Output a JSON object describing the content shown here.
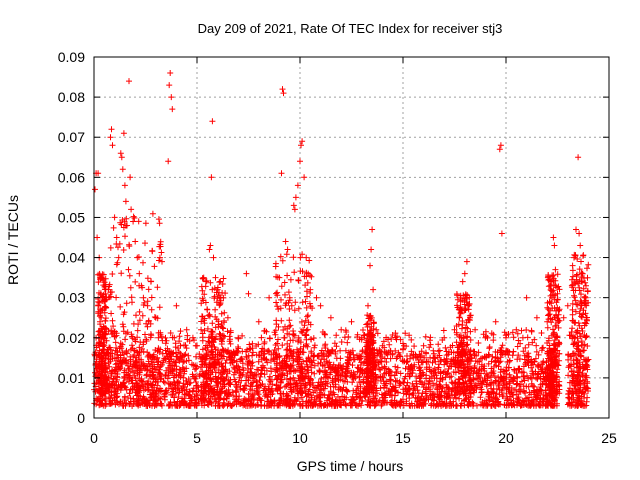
{
  "chart_data": {
    "type": "scatter",
    "title": "Day 209 of 2021, Rate Of TEC Index for receiver stj3",
    "xlabel": "GPS time / hours",
    "ylabel": "ROTI / TECUs",
    "xlim": [
      0,
      25
    ],
    "ylim": [
      0,
      0.09
    ],
    "xticks": [
      0,
      5,
      10,
      15,
      20,
      25
    ],
    "xtick_labels": [
      "0",
      "5",
      "10",
      "15",
      "20",
      "25"
    ],
    "yticks": [
      0,
      0.01,
      0.02,
      0.03,
      0.04,
      0.05,
      0.06,
      0.07,
      0.08,
      0.09
    ],
    "ytick_labels": [
      "0",
      "0.01",
      "0.02",
      "0.03",
      "0.04",
      "0.05",
      "0.06",
      "0.07",
      "0.08",
      "0.09"
    ],
    "grid": true,
    "marker": "plus",
    "color": "#ff0000",
    "series": [
      {
        "name": "ROTI",
        "points": [
          [
            0.05,
            0.057
          ],
          [
            0.1,
            0.061
          ],
          [
            0.2,
            0.061
          ],
          [
            0.15,
            0.045
          ],
          [
            0.25,
            0.04
          ],
          [
            0.3,
            0.035
          ],
          [
            0.2,
            0.028
          ],
          [
            0.35,
            0.025
          ],
          [
            0.4,
            0.022
          ],
          [
            0.1,
            0.02
          ],
          [
            0.5,
            0.018
          ],
          [
            0.6,
            0.03
          ],
          [
            0.7,
            0.032
          ],
          [
            0.8,
            0.07
          ],
          [
            0.85,
            0.072
          ],
          [
            0.9,
            0.068
          ],
          [
            1.0,
            0.05
          ],
          [
            1.1,
            0.045
          ],
          [
            1.2,
            0.04
          ],
          [
            1.3,
            0.066
          ],
          [
            1.35,
            0.065
          ],
          [
            1.4,
            0.062
          ],
          [
            1.45,
            0.071
          ],
          [
            1.5,
            0.058
          ],
          [
            1.55,
            0.054
          ],
          [
            1.6,
            0.048
          ],
          [
            1.7,
            0.084
          ],
          [
            1.75,
            0.06
          ],
          [
            1.8,
            0.052
          ],
          [
            1.9,
            0.049
          ],
          [
            2.0,
            0.044
          ],
          [
            2.1,
            0.04
          ],
          [
            2.2,
            0.036
          ],
          [
            2.3,
            0.033
          ],
          [
            2.4,
            0.03
          ],
          [
            2.6,
            0.028
          ],
          [
            2.8,
            0.027
          ],
          [
            3.0,
            0.025
          ],
          [
            3.2,
            0.04
          ],
          [
            3.3,
            0.039
          ],
          [
            3.6,
            0.064
          ],
          [
            3.65,
            0.083
          ],
          [
            3.7,
            0.086
          ],
          [
            3.75,
            0.08
          ],
          [
            3.8,
            0.077
          ],
          [
            3.9,
            0.02
          ],
          [
            4.0,
            0.028
          ],
          [
            4.2,
            0.018
          ],
          [
            4.5,
            0.022
          ],
          [
            4.8,
            0.02
          ],
          [
            5.0,
            0.018
          ],
          [
            5.2,
            0.022
          ],
          [
            5.5,
            0.027
          ],
          [
            5.6,
            0.042
          ],
          [
            5.65,
            0.043
          ],
          [
            5.7,
            0.06
          ],
          [
            5.75,
            0.074
          ],
          [
            5.8,
            0.04
          ],
          [
            5.9,
            0.035
          ],
          [
            6.0,
            0.032
          ],
          [
            6.1,
            0.03
          ],
          [
            6.2,
            0.026
          ],
          [
            6.5,
            0.025
          ],
          [
            7.0,
            0.02
          ],
          [
            7.4,
            0.036
          ],
          [
            7.5,
            0.031
          ],
          [
            8.0,
            0.024
          ],
          [
            8.5,
            0.03
          ],
          [
            9.0,
            0.035
          ],
          [
            9.1,
            0.061
          ],
          [
            9.15,
            0.082
          ],
          [
            9.2,
            0.081
          ],
          [
            9.3,
            0.044
          ],
          [
            9.4,
            0.042
          ],
          [
            9.5,
            0.03
          ],
          [
            9.6,
            0.028
          ],
          [
            9.7,
            0.053
          ],
          [
            9.75,
            0.052
          ],
          [
            9.8,
            0.055
          ],
          [
            9.9,
            0.058
          ],
          [
            10.0,
            0.064
          ],
          [
            10.05,
            0.068
          ],
          [
            10.1,
            0.069
          ],
          [
            10.2,
            0.06
          ],
          [
            10.3,
            0.04
          ],
          [
            10.4,
            0.036
          ],
          [
            10.5,
            0.032
          ],
          [
            10.8,
            0.03
          ],
          [
            11.0,
            0.028
          ],
          [
            11.5,
            0.025
          ],
          [
            12.0,
            0.022
          ],
          [
            12.5,
            0.024
          ],
          [
            13.0,
            0.02
          ],
          [
            13.3,
            0.028
          ],
          [
            13.4,
            0.038
          ],
          [
            13.45,
            0.042
          ],
          [
            13.5,
            0.047
          ],
          [
            13.55,
            0.032
          ],
          [
            13.7,
            0.022
          ],
          [
            14.0,
            0.018
          ],
          [
            14.5,
            0.016
          ],
          [
            15.0,
            0.017
          ],
          [
            15.5,
            0.015
          ],
          [
            16.0,
            0.018
          ],
          [
            16.5,
            0.016
          ],
          [
            17.0,
            0.02
          ],
          [
            17.5,
            0.022
          ],
          [
            17.8,
            0.026
          ],
          [
            17.9,
            0.034
          ],
          [
            18.0,
            0.036
          ],
          [
            18.1,
            0.039
          ],
          [
            18.2,
            0.028
          ],
          [
            18.5,
            0.022
          ],
          [
            19.0,
            0.02
          ],
          [
            19.5,
            0.024
          ],
          [
            19.7,
            0.067
          ],
          [
            19.75,
            0.068
          ],
          [
            19.8,
            0.046
          ],
          [
            20.0,
            0.02
          ],
          [
            20.5,
            0.022
          ],
          [
            21.0,
            0.03
          ],
          [
            21.5,
            0.025
          ],
          [
            22.0,
            0.024
          ],
          [
            22.2,
            0.034
          ],
          [
            22.3,
            0.045
          ],
          [
            22.35,
            0.043
          ],
          [
            22.4,
            0.037
          ],
          [
            22.5,
            0.031
          ],
          [
            22.8,
            0.025
          ],
          [
            23.0,
            0.028
          ],
          [
            23.2,
            0.033
          ],
          [
            23.3,
            0.04
          ],
          [
            23.4,
            0.047
          ],
          [
            23.5,
            0.065
          ],
          [
            23.55,
            0.046
          ],
          [
            23.6,
            0.043
          ],
          [
            23.7,
            0.036
          ],
          [
            23.8,
            0.03
          ],
          [
            23.9,
            0.025
          ]
        ],
        "note": "Dense background band of points from 0.002 to 0.015 TECU across 0-24 h"
      }
    ]
  }
}
